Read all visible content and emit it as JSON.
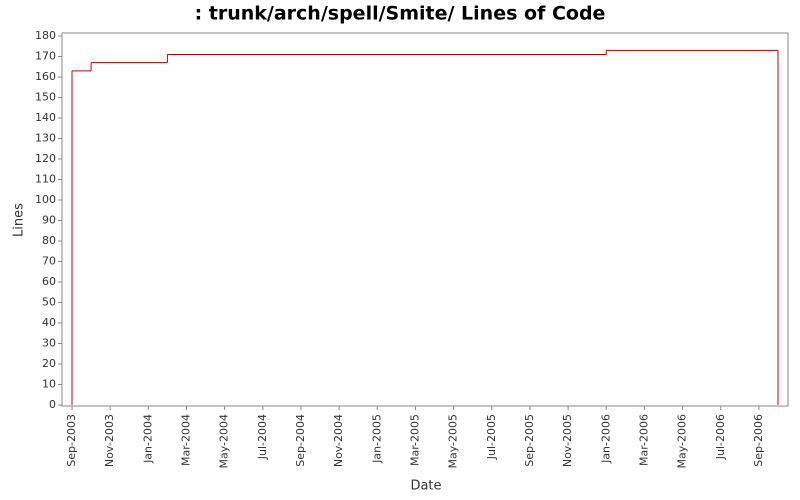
{
  "chart_data": {
    "type": "step",
    "title": ": trunk/arch/spell/Smite/ Lines of Code",
    "x_label": "Date",
    "y_label": "Lines",
    "x": [
      "2003-09",
      "2003-09",
      "2003-10",
      "2004-02",
      "2006-01",
      "2006-10"
    ],
    "series": [
      {
        "name": "Lines",
        "color": "#c00000",
        "values": [
          0,
          163,
          167,
          171,
          173,
          0
        ]
      }
    ],
    "xlim": [
      "2003-09",
      "2006-10"
    ],
    "xticks": [
      {
        "value": "2003-09",
        "label": "Sep-2003"
      },
      {
        "value": "2003-11",
        "label": "Nov-2003"
      },
      {
        "value": "2004-01",
        "label": "Jan-2004"
      },
      {
        "value": "2004-03",
        "label": "Mar-2004"
      },
      {
        "value": "2004-05",
        "label": "May-2004"
      },
      {
        "value": "2004-07",
        "label": "Jul-2004"
      },
      {
        "value": "2004-09",
        "label": "Sep-2004"
      },
      {
        "value": "2004-11",
        "label": "Nov-2004"
      },
      {
        "value": "2005-01",
        "label": "Jan-2005"
      },
      {
        "value": "2005-03",
        "label": "Mar-2005"
      },
      {
        "value": "2005-05",
        "label": "May-2005"
      },
      {
        "value": "2005-07",
        "label": "Jul-2005"
      },
      {
        "value": "2005-09",
        "label": "Sep-2005"
      },
      {
        "value": "2005-11",
        "label": "Nov-2005"
      },
      {
        "value": "2006-01",
        "label": "Jan-2006"
      },
      {
        "value": "2006-03",
        "label": "Mar-2006"
      },
      {
        "value": "2006-05",
        "label": "May-2006"
      },
      {
        "value": "2006-07",
        "label": "Jul-2006"
      },
      {
        "value": "2006-09",
        "label": "Sep-2006"
      }
    ],
    "ylim": [
      0,
      180
    ],
    "yticks": [
      0,
      10,
      20,
      30,
      40,
      50,
      60,
      70,
      80,
      90,
      100,
      110,
      120,
      130,
      140,
      150,
      160,
      170,
      180
    ],
    "grid": false
  }
}
